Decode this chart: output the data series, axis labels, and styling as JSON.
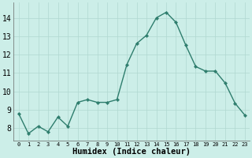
{
  "x": [
    0,
    1,
    2,
    3,
    4,
    5,
    6,
    7,
    8,
    9,
    10,
    11,
    12,
    13,
    14,
    15,
    16,
    17,
    18,
    19,
    20,
    21,
    22,
    23
  ],
  "y": [
    8.8,
    7.7,
    8.1,
    7.8,
    8.6,
    8.1,
    9.4,
    9.55,
    9.4,
    9.4,
    9.55,
    11.45,
    12.6,
    13.05,
    14.0,
    14.3,
    13.75,
    12.5,
    11.35,
    11.1,
    11.1,
    10.45,
    9.35,
    8.7
  ],
  "line_color": "#2e7d6d",
  "marker": "D",
  "marker_size": 2.2,
  "bg_color": "#cceee8",
  "grid_color": "#b0d8d0",
  "xlabel": "Humidex (Indice chaleur)",
  "xlim": [
    -0.5,
    23.5
  ],
  "ylim": [
    7.3,
    14.85
  ],
  "yticks": [
    8,
    9,
    10,
    11,
    12,
    13,
    14
  ],
  "xticks": [
    0,
    1,
    2,
    3,
    4,
    5,
    6,
    7,
    8,
    9,
    10,
    11,
    12,
    13,
    14,
    15,
    16,
    17,
    18,
    19,
    20,
    21,
    22,
    23
  ],
  "line_width": 1.0,
  "xlabel_fontsize": 7.5,
  "ytick_fontsize": 7,
  "xtick_fontsize": 5.0
}
